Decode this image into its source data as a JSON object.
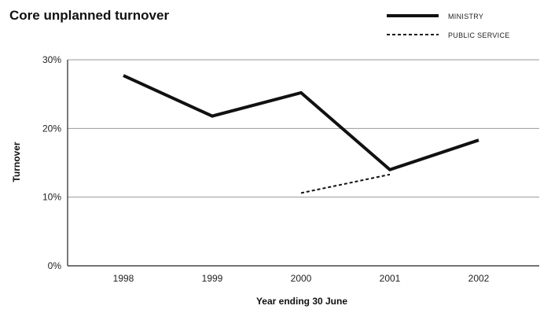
{
  "chart_data": {
    "type": "line",
    "title": "Core unplanned turnover",
    "xlabel": "Year ending 30 June",
    "ylabel": "Turnover",
    "categories": [
      "1998",
      "1999",
      "2000",
      "2001",
      "2002"
    ],
    "y_ticks": [
      "0%",
      "10%",
      "20%",
      "30%"
    ],
    "ylim": [
      0,
      30
    ],
    "grid": true,
    "legend_position": "top-right",
    "series": [
      {
        "name": "MINISTRY",
        "style": "solid",
        "color": "#111111",
        "points": [
          {
            "x": "1998",
            "y": 27.7
          },
          {
            "x": "1999",
            "y": 21.8
          },
          {
            "x": "2000",
            "y": 25.2
          },
          {
            "x": "2001",
            "y": 14.0
          },
          {
            "x": "2002",
            "y": 18.3
          }
        ]
      },
      {
        "name": "PUBLIC SERVICE",
        "style": "dashed",
        "color": "#111111",
        "points": [
          {
            "x": "2000",
            "y": 10.6
          },
          {
            "x": "2001",
            "y": 13.3
          }
        ]
      }
    ]
  }
}
